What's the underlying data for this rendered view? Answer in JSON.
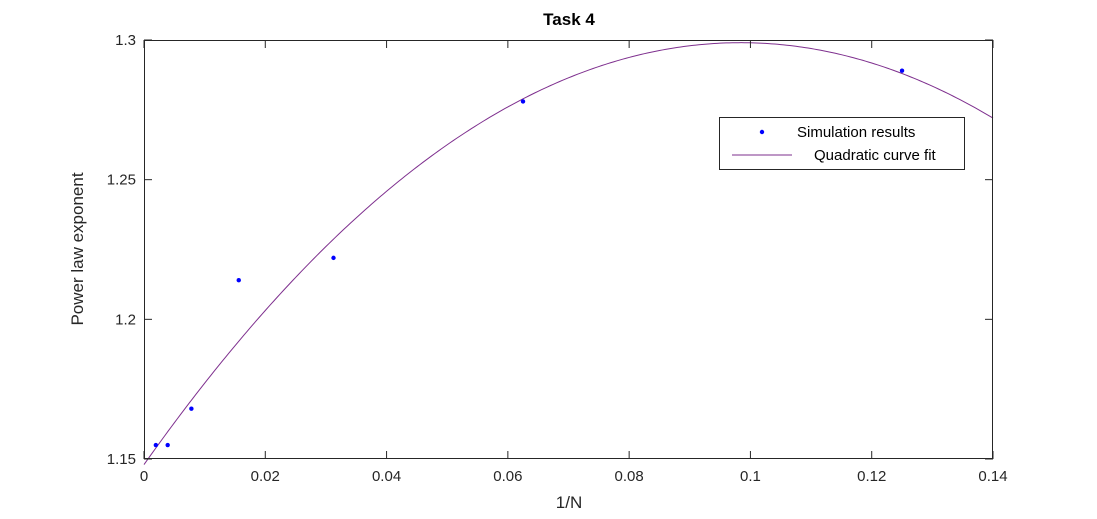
{
  "chart_data": {
    "type": "scatter",
    "title": "Task 4",
    "xlabel": "1/N",
    "ylabel": "Power law exponent",
    "xlim": [
      0,
      0.14
    ],
    "ylim": [
      1.15,
      1.3
    ],
    "xticks": [
      0,
      0.02,
      0.04,
      0.06,
      0.08,
      0.1,
      0.12,
      0.14
    ],
    "xtick_labels": [
      "0",
      "0.02",
      "0.04",
      "0.06",
      "0.08",
      "0.1",
      "0.12",
      "0.14"
    ],
    "yticks": [
      1.15,
      1.2,
      1.25,
      1.3
    ],
    "ytick_labels": [
      "1.15",
      "1.2",
      "1.25",
      "1.3"
    ],
    "grid": false,
    "legend_position": "top-right",
    "series": [
      {
        "name": "Simulation results",
        "kind": "points",
        "color": "#0000ff",
        "x": [
          0.001953,
          0.003906,
          0.0078125,
          0.015625,
          0.03125,
          0.0625,
          0.125
        ],
        "y": [
          1.155,
          1.155,
          1.168,
          1.214,
          1.222,
          1.278,
          1.289
        ]
      },
      {
        "name": "Quadratic curve fit",
        "kind": "line",
        "color": "#7e2f8e",
        "function": "quadratic",
        "coefficients": {
          "a": -15.6,
          "b": 3.07,
          "c": 1.148
        }
      }
    ]
  }
}
